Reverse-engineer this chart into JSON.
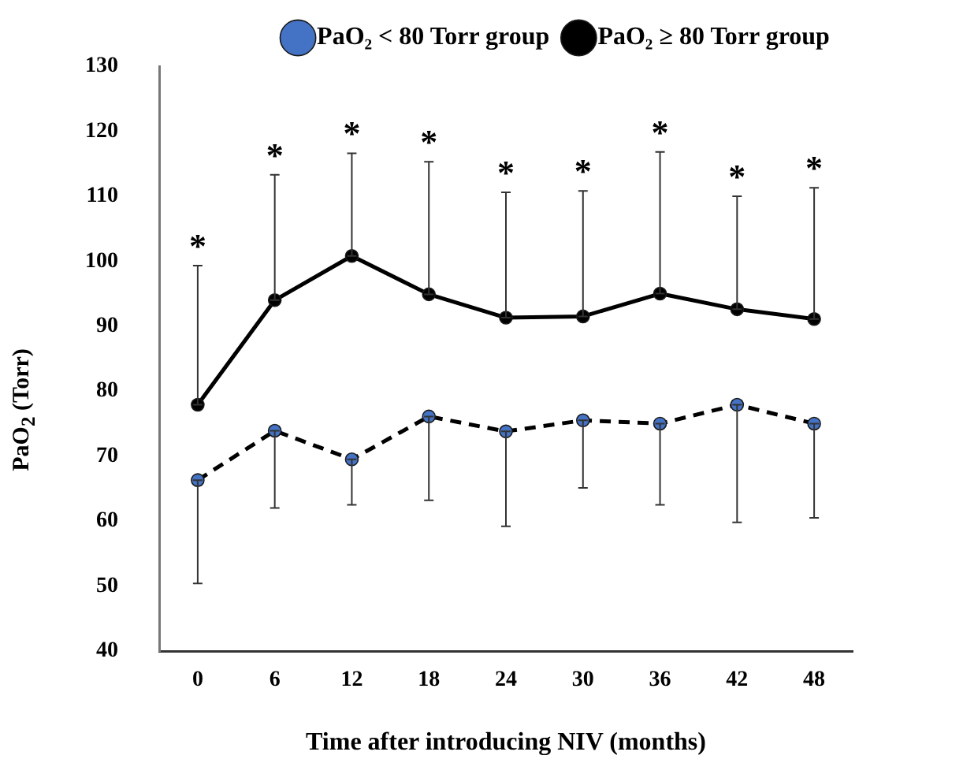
{
  "chart_data": {
    "type": "line",
    "xlabel": "Time after introducing NIV (months)",
    "ylabel": "PaO$_{2}$ (Torr)",
    "categories": [
      "0",
      "6",
      "12",
      "18",
      "24",
      "30",
      "36",
      "42",
      "48"
    ],
    "series": [
      {
        "name": "PaO₂ < 80 Torr group",
        "color": "#4472c4",
        "line_style": "dashed",
        "values": [
          66.3,
          73.9,
          69.5,
          76.1,
          73.8,
          75.5,
          75.0,
          77.9,
          75.0
        ],
        "errors": [
          [
            50.4,
            66.3
          ],
          [
            62.0,
            73.9
          ],
          [
            62.5,
            69.5
          ],
          [
            63.2,
            76.1
          ],
          [
            59.2,
            73.8
          ],
          [
            65.1,
            75.5
          ],
          [
            62.5,
            75.0
          ],
          [
            59.8,
            77.9
          ],
          [
            60.5,
            75.0
          ]
        ]
      },
      {
        "name": "PaO₂ ≥ 80 Torr group",
        "color": "#000000",
        "line_style": "solid",
        "values": [
          77.9,
          94.0,
          100.8,
          94.9,
          91.3,
          91.5,
          95.0,
          92.6,
          91.1
        ],
        "errors": [
          [
            77.9,
            99.3
          ],
          [
            94.0,
            113.3
          ],
          [
            100.8,
            116.6
          ],
          [
            94.9,
            115.3
          ],
          [
            91.3,
            110.6
          ],
          [
            91.5,
            110.8
          ],
          [
            95.0,
            116.8
          ],
          [
            92.6,
            110.0
          ],
          [
            91.1,
            111.3
          ]
        ]
      }
    ],
    "annotations": [
      {
        "text": "*",
        "x": "0",
        "y": 99.3
      },
      {
        "text": "*",
        "x": "6",
        "y": 113.3
      },
      {
        "text": "*",
        "x": "12",
        "y": 116.6
      },
      {
        "text": "*",
        "x": "18",
        "y": 115.3
      },
      {
        "text": "*",
        "x": "24",
        "y": 110.6
      },
      {
        "text": "*",
        "x": "30",
        "y": 110.8
      },
      {
        "text": "*",
        "x": "36",
        "y": 116.8
      },
      {
        "text": "*",
        "x": "42",
        "y": 110.0
      },
      {
        "text": "*",
        "x": "48",
        "y": 111.3
      }
    ],
    "ylim": [
      40,
      130
    ],
    "yticks": [
      40,
      50,
      60,
      70,
      80,
      90,
      100,
      110,
      120,
      130
    ],
    "grid": false,
    "legend": "top",
    "marker": "circle"
  }
}
